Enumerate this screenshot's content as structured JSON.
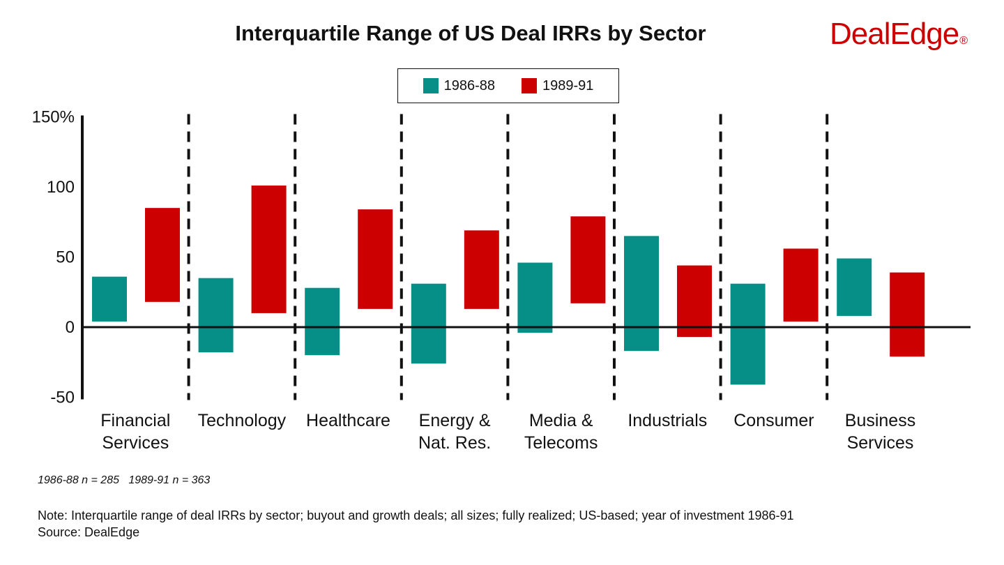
{
  "chart_data": {
    "type": "bar",
    "subtype": "floating-range",
    "title": "Interquartile Range of US Deal IRRs by Sector",
    "categories": [
      [
        "Financial",
        "Services"
      ],
      [
        "Technology"
      ],
      [
        "Healthcare"
      ],
      [
        "Energy &",
        "Nat. Res."
      ],
      [
        "Media &",
        "Telecoms"
      ],
      [
        "Industrials"
      ],
      [
        "Consumer"
      ],
      [
        "Business",
        "Services"
      ]
    ],
    "series": [
      {
        "name": "1986-88",
        "color": "#058f87",
        "ranges": [
          [
            4,
            36
          ],
          [
            -18,
            35
          ],
          [
            -20,
            28
          ],
          [
            -26,
            31
          ],
          [
            -4,
            46
          ],
          [
            -17,
            65
          ],
          [
            -41,
            31
          ],
          [
            8,
            49
          ]
        ]
      },
      {
        "name": "1989-91",
        "color": "#cc0000",
        "ranges": [
          [
            18,
            85
          ],
          [
            10,
            101
          ],
          [
            13,
            84
          ],
          [
            13,
            69
          ],
          [
            17,
            79
          ],
          [
            -7,
            44
          ],
          [
            4,
            56
          ],
          [
            -21,
            39
          ]
        ]
      }
    ],
    "ylim": [
      -50,
      150
    ],
    "yticks": [
      "150%",
      "100",
      "50",
      "0",
      "-50"
    ],
    "ytick_values": [
      150,
      100,
      50,
      0,
      -50
    ],
    "legend": "top-center",
    "grid": false
  },
  "brand": {
    "logo_text": "DealEdge",
    "logo_mark": "®",
    "color": "#cc0000"
  },
  "footer": {
    "counts": "1986-88 n = 285   1989-91 n = 363",
    "note": "Note: Interquartile range of deal IRRs by sector; buyout and growth deals; all sizes; fully realized; US-based; year of investment 1986-91",
    "source": "Source: DealEdge"
  }
}
